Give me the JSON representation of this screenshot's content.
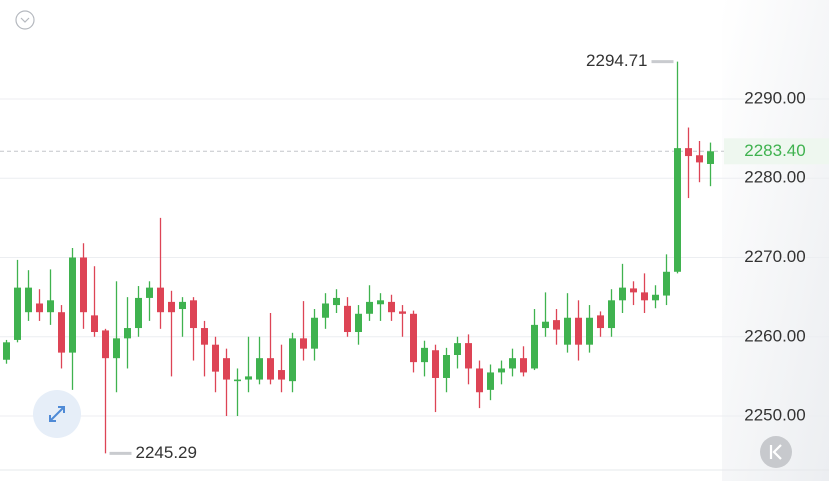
{
  "chart_data": {
    "type": "candlestick",
    "up_color": "#3fb24f",
    "down_color": "#dd4455",
    "open": [
      2257.1,
      2259.6,
      2263.1,
      2264.2,
      2263.1,
      2263.1,
      2258.0,
      2270.0,
      2262.7,
      2260.8,
      2257.3,
      2259.8,
      2261.1,
      2264.9,
      2266.2,
      2264.4,
      2263.5,
      2264.6,
      2261.1,
      2259.0,
      2257.3,
      2254.4,
      2254.6,
      2254.6,
      2257.3,
      2255.8,
      2254.4,
      2259.8,
      2258.5,
      2262.4,
      2264.0,
      2263.9,
      2260.6,
      2262.9,
      2264.1,
      2264.4,
      2263.2,
      2262.9,
      2256.8,
      2258.3,
      2254.8,
      2257.7,
      2259.2,
      2256.0,
      2253.3,
      2255.5,
      2256.0,
      2257.3,
      2256.0,
      2261.1,
      2262.1,
      2259.0,
      2262.4,
      2259.0,
      2262.7,
      2261.1,
      2264.6,
      2266.1,
      2265.6,
      2264.6,
      2265.2,
      2268.2,
      2283.8,
      2282.9,
      2281.8
    ],
    "high": [
      2259.6,
      2269.7,
      2268.4,
      2266.0,
      2268.5,
      2264.0,
      2271.2,
      2271.8,
      2268.9,
      2261.0,
      2267.0,
      2265.0,
      2266.4,
      2267.0,
      2275.0,
      2265.8,
      2265.0,
      2265.0,
      2262.0,
      2260.0,
      2258.5,
      2256.0,
      2260.0,
      2260.0,
      2263.0,
      2259.0,
      2260.5,
      2264.5,
      2263.5,
      2265.5,
      2266.0,
      2265.0,
      2264.0,
      2266.5,
      2265.5,
      2265.3,
      2264.0,
      2263.3,
      2259.5,
      2259.0,
      2258.6,
      2260.0,
      2260.3,
      2257.0,
      2256.5,
      2257.0,
      2258.5,
      2258.8,
      2263.5,
      2265.6,
      2263.5,
      2265.5,
      2264.6,
      2264.0,
      2263.2,
      2266.0,
      2269.2,
      2267.0,
      2268.0,
      2266.5,
      2270.4,
      2294.71,
      2286.4,
      2284.7,
      2284.5
    ],
    "low": [
      2256.6,
      2259.3,
      2262.0,
      2262.0,
      2261.5,
      2256.0,
      2253.3,
      2261.0,
      2260.0,
      2245.29,
      2253.0,
      2256.0,
      2260.0,
      2262.0,
      2261.0,
      2255.0,
      2260.0,
      2257.0,
      2255.0,
      2253.0,
      2250.0,
      2250.0,
      2253.0,
      2254.0,
      2254.0,
      2253.0,
      2253.0,
      2257.0,
      2257.0,
      2261.0,
      2263.0,
      2260.0,
      2259.0,
      2262.0,
      2262.0,
      2262.0,
      2260.0,
      2255.5,
      2255.0,
      2250.5,
      2253.0,
      2256.0,
      2254.0,
      2251.0,
      2252.0,
      2254.0,
      2255.0,
      2255.0,
      2255.8,
      2260.0,
      2259.0,
      2258.0,
      2257.0,
      2258.0,
      2260.0,
      2260.0,
      2263.0,
      2264.0,
      2263.0,
      2263.6,
      2264.0,
      2268.0,
      2277.5,
      2279.5,
      2279.0
    ],
    "close": [
      2259.3,
      2266.2,
      2266.2,
      2263.1,
      2264.6,
      2258.0,
      2270.0,
      2263.1,
      2260.6,
      2257.3,
      2259.8,
      2261.1,
      2264.9,
      2266.2,
      2263.1,
      2263.1,
      2264.4,
      2261.1,
      2259.0,
      2255.6,
      2254.6,
      2254.6,
      2255.0,
      2257.3,
      2254.6,
      2254.6,
      2259.8,
      2258.5,
      2262.4,
      2264.2,
      2264.9,
      2260.6,
      2262.9,
      2264.4,
      2264.6,
      2263.1,
      2262.9,
      2256.8,
      2258.6,
      2254.8,
      2257.7,
      2259.2,
      2256.0,
      2253.0,
      2255.5,
      2256.0,
      2257.3,
      2255.5,
      2261.5,
      2261.9,
      2260.9,
      2262.4,
      2259.0,
      2262.4,
      2261.1,
      2264.6,
      2266.2,
      2265.6,
      2264.6,
      2265.3,
      2268.2,
      2283.8,
      2282.8,
      2282.0,
      2283.4
    ],
    "ylim": [
      2243.19,
      2302.49
    ],
    "yticks": [
      {
        "value": 2250,
        "label": "2250.00"
      },
      {
        "value": 2260,
        "label": "2260.00"
      },
      {
        "value": 2270,
        "label": "2270.00"
      },
      {
        "value": 2280,
        "label": "2280.00"
      },
      {
        "value": 2290,
        "label": "2290.00"
      }
    ],
    "grid": true,
    "last_price": {
      "value": 2283.4,
      "label": "2283.40"
    }
  }
}
